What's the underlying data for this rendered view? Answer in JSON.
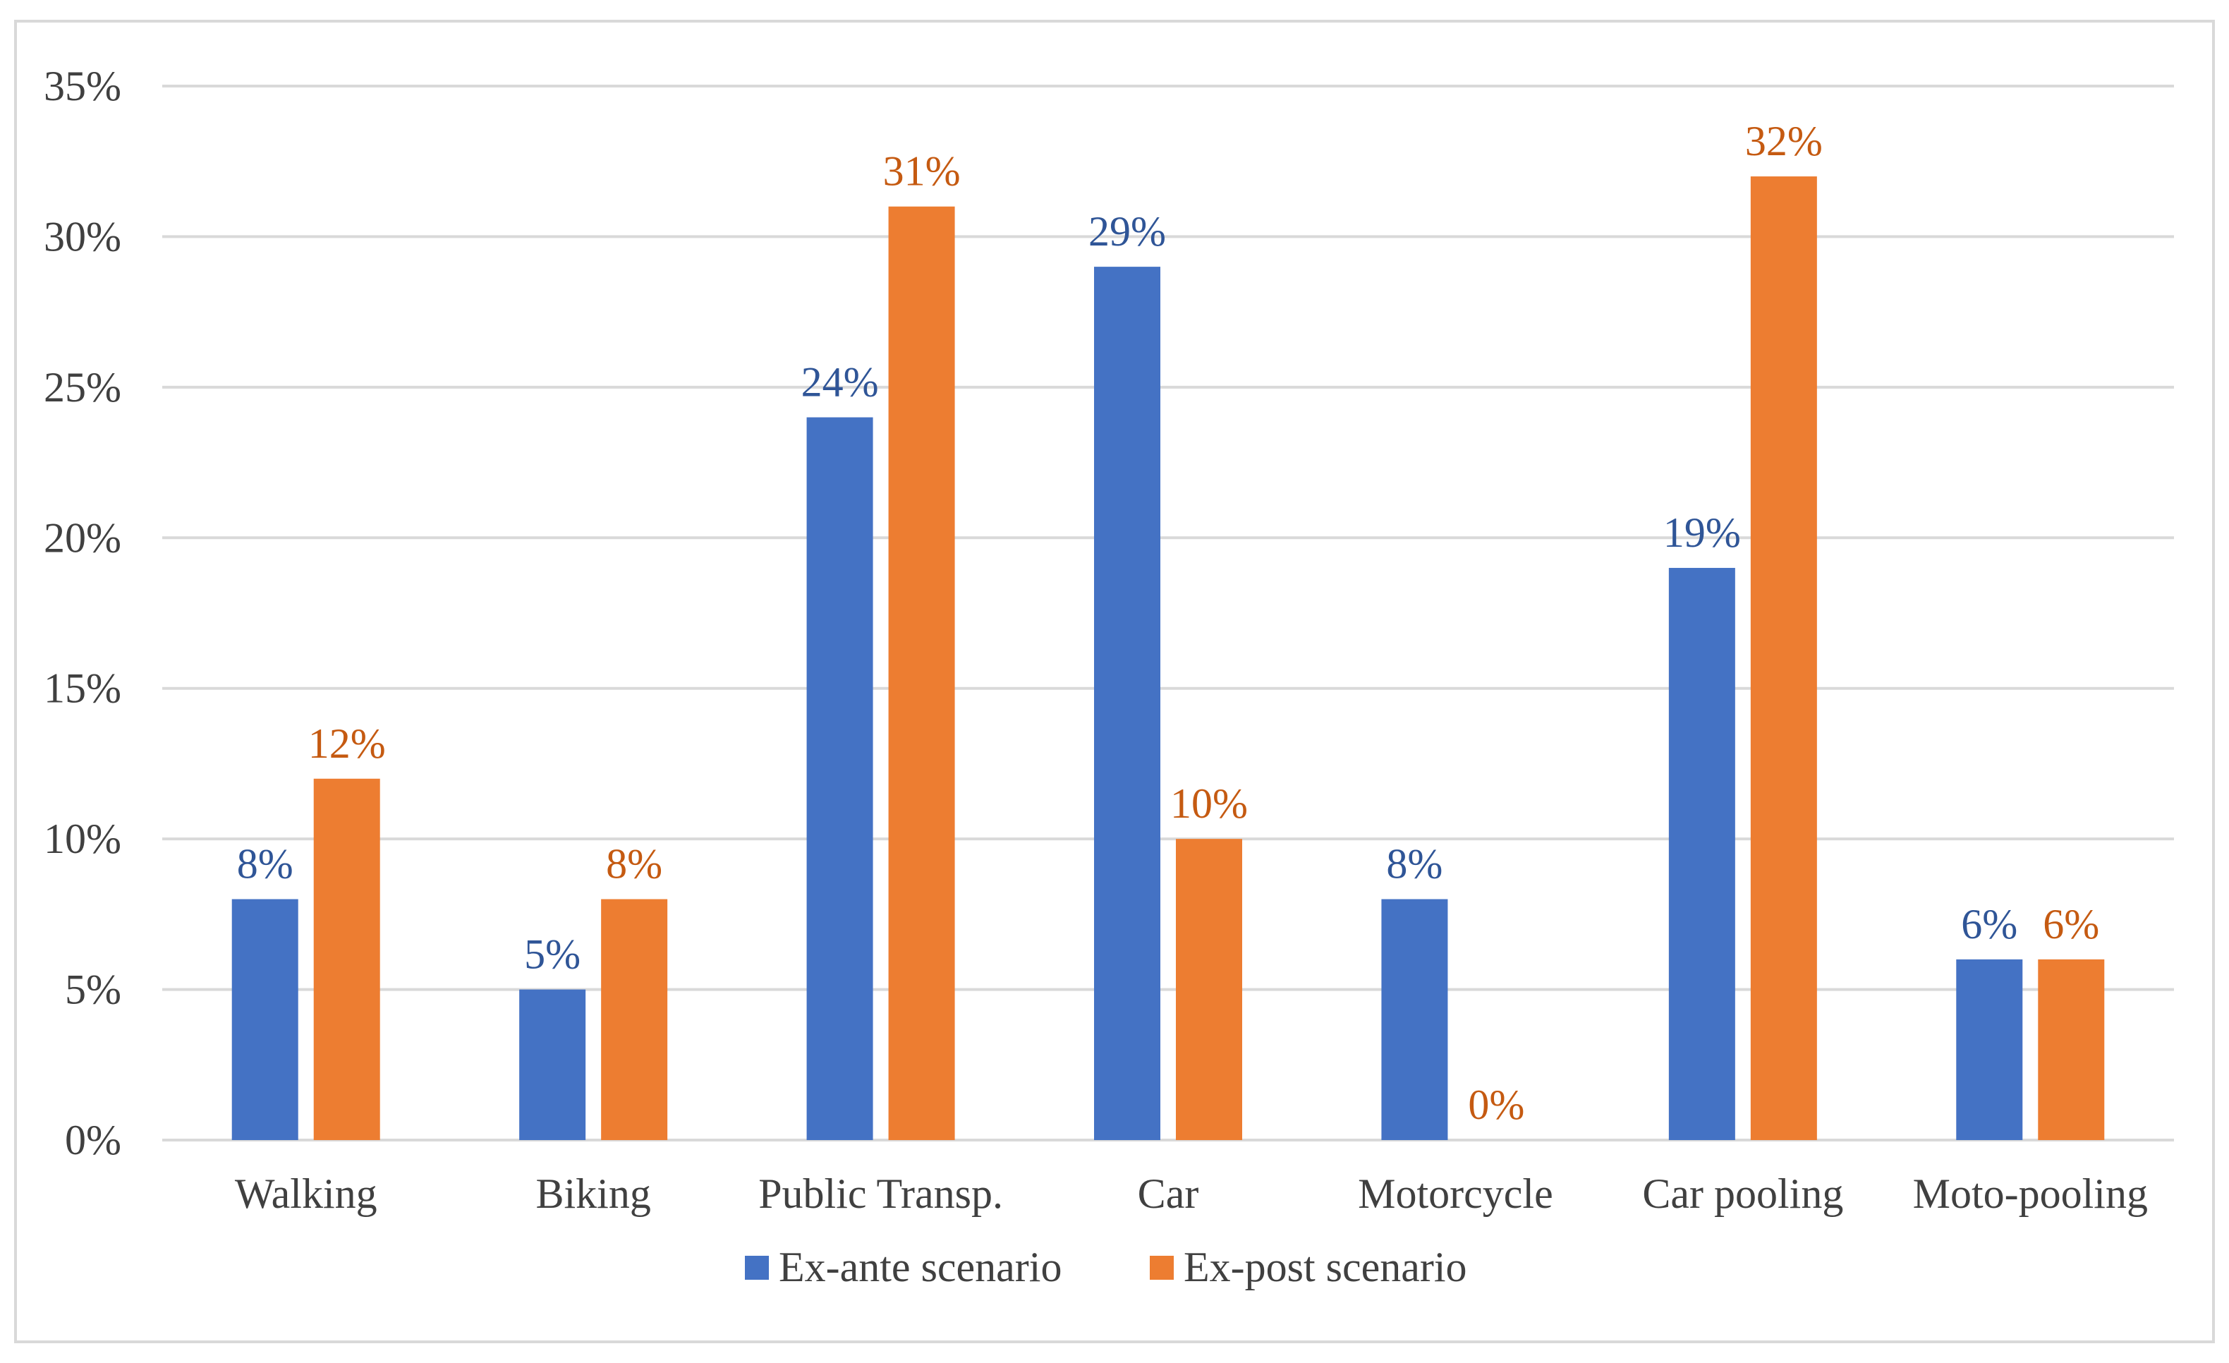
{
  "chart_data": {
    "type": "bar",
    "title": "",
    "xlabel": "",
    "ylabel": "",
    "ylim": [
      0,
      35
    ],
    "yticks": [
      "0%",
      "5%",
      "10%",
      "15%",
      "20%",
      "25%",
      "30%",
      "35%"
    ],
    "ytick_values": [
      0,
      5,
      10,
      15,
      20,
      25,
      30,
      35
    ],
    "grid": true,
    "legend_position": "bottom",
    "categories": [
      "Walking",
      "Biking",
      "Public Transp.",
      "Car",
      "Motorcycle",
      "Car pooling",
      "Moto-pooling"
    ],
    "series": [
      {
        "name": "Ex-ante scenario",
        "color": "#4472c4",
        "label_color": "#2f5597",
        "values": [
          8,
          5,
          24,
          29,
          8,
          19,
          6
        ],
        "labels": [
          "8%",
          "5%",
          "24%",
          "29%",
          "8%",
          "19%",
          "6%"
        ]
      },
      {
        "name": "Ex-post scenario",
        "color": "#ed7d31",
        "label_color": "#c55a11",
        "values": [
          12,
          8,
          31,
          10,
          0,
          32,
          6
        ],
        "labels": [
          "12%",
          "8%",
          "31%",
          "10%",
          "0%",
          "32%",
          "6%"
        ]
      }
    ]
  }
}
